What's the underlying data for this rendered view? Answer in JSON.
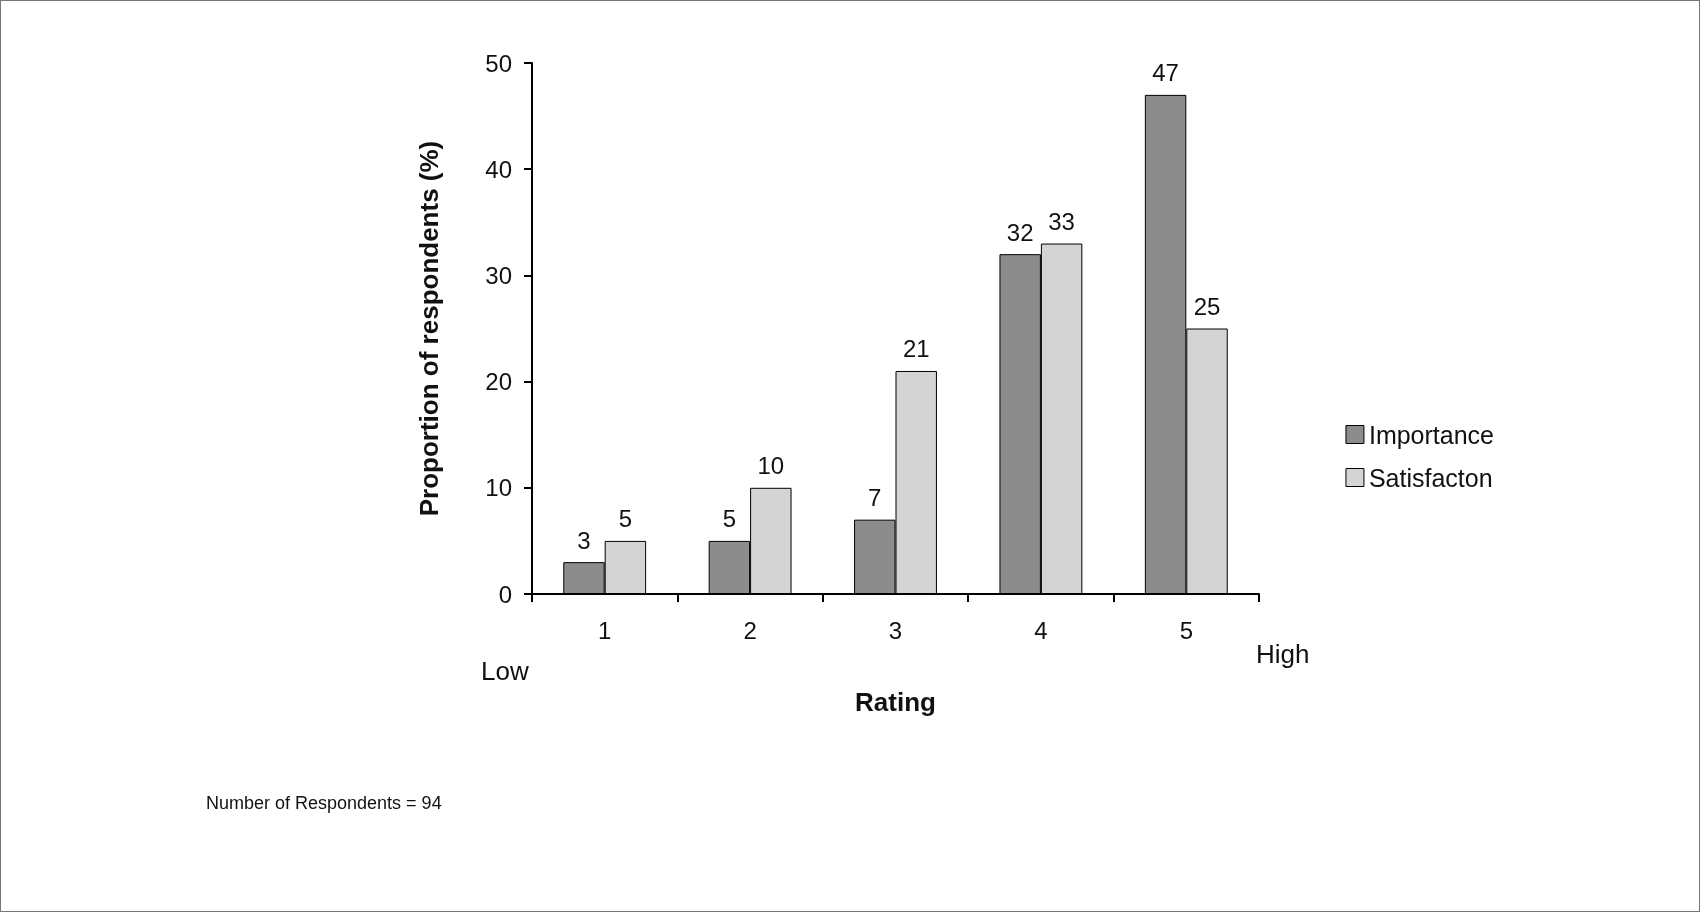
{
  "chart_data": {
    "type": "bar",
    "xlabel": "Rating",
    "ylabel": "Proportion of respondents (%)",
    "categories": [
      "1",
      "2",
      "3",
      "4",
      "5"
    ],
    "series": [
      {
        "name": "Importance",
        "color": "#8c8c8c",
        "values": [
          3,
          5,
          7,
          32,
          47
        ]
      },
      {
        "name": "Satisfacton",
        "color": "#d4d4d4",
        "values": [
          5,
          10,
          21,
          33,
          25
        ]
      }
    ],
    "ylim": [
      0,
      50
    ],
    "yticks": [
      0,
      10,
      20,
      30,
      40,
      50
    ],
    "grid": false,
    "legend": "right",
    "data_labels": true,
    "annotations": [
      "Low",
      "High",
      "Number of Respondents = 94"
    ]
  }
}
